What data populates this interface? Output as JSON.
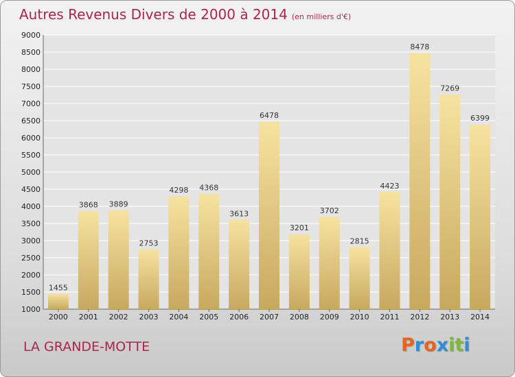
{
  "title": "Autres Revenus Divers de 2000 à 2014",
  "subtitle": "(en milliers d'€)",
  "place": "LA GRANDE-MOTTE",
  "logo": {
    "text": "Proxiti",
    "colors": [
      "#e8641b",
      "#2a8fd6",
      "#e8641b",
      "#2a8fd6",
      "#7dbb2e",
      "#7dbb2e",
      "#2a8fd6"
    ]
  },
  "colors": {
    "title": "#b0224a",
    "bar_light": "#f6e3a0",
    "bar_dark": "#c8a85f",
    "grid": "#ffffff"
  },
  "chart_data": {
    "type": "bar",
    "categories": [
      "2000",
      "2001",
      "2002",
      "2003",
      "2004",
      "2005",
      "2006",
      "2007",
      "2008",
      "2009",
      "2010",
      "2011",
      "2012",
      "2013",
      "2014"
    ],
    "values": [
      1455,
      3868,
      3889,
      2753,
      4298,
      4368,
      3613,
      6478,
      3201,
      3702,
      2815,
      4423,
      8478,
      7269,
      6399
    ],
    "ylim": [
      1000,
      9000
    ],
    "yticks": [
      1000,
      1500,
      2000,
      2500,
      3000,
      3500,
      4000,
      4500,
      5000,
      5500,
      6000,
      6500,
      7000,
      7500,
      8000,
      8500,
      9000
    ],
    "grid": true,
    "title": "Autres Revenus Divers de 2000 à 2014",
    "xlabel": "",
    "ylabel": ""
  }
}
